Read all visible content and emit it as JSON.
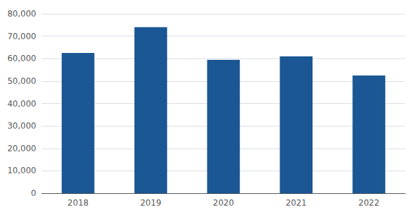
{
  "chart_data": {
    "type": "bar",
    "categories": [
      "2018",
      "2019",
      "2020",
      "2021",
      "2022"
    ],
    "values": [
      62500,
      74000,
      59500,
      61000,
      52500
    ],
    "color": "#1a5794",
    "ylim": [
      0,
      80000
    ],
    "yticks": [
      0,
      {
        "value": 10000,
        "label": "10,000"
      },
      {
        "value": 20000,
        "label": "20,000"
      },
      {
        "value": 30000,
        "label": "30,000"
      },
      {
        "value": 40000,
        "label": "40,000"
      },
      {
        "value": 50000,
        "label": "50,000"
      },
      {
        "value": 60000,
        "label": "60,000"
      },
      {
        "value": 70000,
        "label": "70,000"
      },
      {
        "value": 80000,
        "label": "80,000"
      }
    ],
    "grid": true
  }
}
